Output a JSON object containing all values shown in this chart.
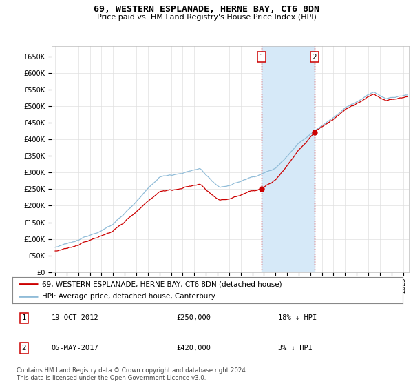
{
  "title": "69, WESTERN ESPLANADE, HERNE BAY, CT6 8DN",
  "subtitle": "Price paid vs. HM Land Registry's House Price Index (HPI)",
  "ylabel_ticks": [
    "£0",
    "£50K",
    "£100K",
    "£150K",
    "£200K",
    "£250K",
    "£300K",
    "£350K",
    "£400K",
    "£450K",
    "£500K",
    "£550K",
    "£600K",
    "£650K"
  ],
  "ytick_vals": [
    0,
    50000,
    100000,
    150000,
    200000,
    250000,
    300000,
    350000,
    400000,
    450000,
    500000,
    550000,
    600000,
    650000
  ],
  "ylim": [
    0,
    680000
  ],
  "xlim_start": 1994.7,
  "xlim_end": 2025.5,
  "sale1_date": 2012.8,
  "sale1_price": 250000,
  "sale2_date": 2017.37,
  "sale2_price": 420000,
  "hpi_line_color": "#90bcd8",
  "sale_line_color": "#cc0000",
  "vspan_color": "#d6e9f8",
  "vline_color": "#cc0000",
  "legend_entry1": "69, WESTERN ESPLANADE, HERNE BAY, CT6 8DN (detached house)",
  "legend_entry2": "HPI: Average price, detached house, Canterbury",
  "table_row1": [
    "1",
    "19-OCT-2012",
    "£250,000",
    "18% ↓ HPI"
  ],
  "table_row2": [
    "2",
    "05-MAY-2017",
    "£420,000",
    "3% ↓ HPI"
  ],
  "footnote": "Contains HM Land Registry data © Crown copyright and database right 2024.\nThis data is licensed under the Open Government Licence v3.0.",
  "background_color": "#ffffff",
  "grid_color": "#e0e0e0"
}
